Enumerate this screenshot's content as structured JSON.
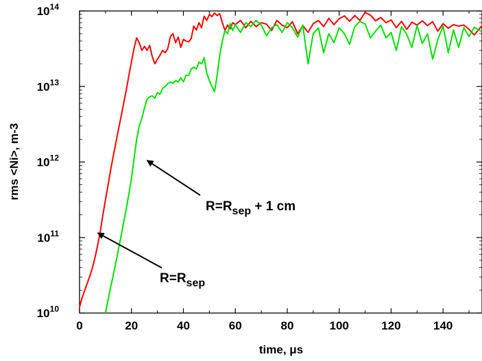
{
  "chart_data": {
    "type": "line",
    "xlabel": "time, μs",
    "ylabel": "rms <Ni>, m-3",
    "xlim": [
      0,
      155
    ],
    "ylim": [
      10000000000,
      100000000000000
    ],
    "yscale": "log",
    "xticks": [
      "0",
      "20",
      "40",
      "60",
      "80",
      "100",
      "120",
      "140"
    ],
    "yticks": [
      {
        "base": "10",
        "exp": "10"
      },
      {
        "base": "10",
        "exp": "11"
      },
      {
        "base": "10",
        "exp": "12"
      },
      {
        "base": "10",
        "exp": "13"
      },
      {
        "base": "10",
        "exp": "14"
      }
    ],
    "grid": false,
    "series": [
      {
        "label": "R=Rsep",
        "color": "#ff0000",
        "x": [
          0,
          1,
          2,
          3,
          4,
          5,
          6,
          7,
          8,
          9,
          10,
          11,
          12,
          13,
          14,
          15,
          16,
          17,
          18,
          19,
          20,
          21,
          22,
          23,
          24,
          25,
          26,
          27,
          28,
          29,
          30,
          31,
          32,
          33,
          34,
          35,
          36,
          37,
          38,
          39,
          40,
          41,
          42,
          43,
          44,
          45,
          46,
          47,
          48,
          49,
          50,
          51,
          52,
          53,
          54,
          55,
          56,
          57,
          58,
          59,
          60,
          62,
          64,
          66,
          68,
          70,
          72,
          74,
          76,
          78,
          80,
          82,
          84,
          86,
          88,
          90,
          92,
          94,
          96,
          98,
          100,
          102,
          104,
          106,
          108,
          110,
          112,
          114,
          116,
          118,
          120,
          122,
          124,
          126,
          128,
          130,
          132,
          134,
          136,
          138,
          140,
          142,
          144,
          146,
          148,
          150,
          152,
          155
        ],
        "y": [
          12000000000.0,
          16000000000.0,
          20000000000.0,
          25000000000.0,
          31000000000.0,
          40000000000.0,
          55000000000.0,
          80000000000.0,
          120000000000.0,
          200000000000.0,
          320000000000.0,
          500000000000.0,
          790000000000.0,
          1200000000000.0,
          1800000000000.0,
          2700000000000.0,
          4000000000000.0,
          6000000000000.0,
          9000000000000.0,
          14000000000000.0,
          21000000000000.0,
          32000000000000.0,
          44000000000000.0,
          38000000000000.0,
          30000000000000.0,
          34000000000000.0,
          30000000000000.0,
          35000000000000.0,
          25000000000000.0,
          20000000000000.0,
          23000000000000.0,
          26000000000000.0,
          30000000000000.0,
          28000000000000.0,
          32000000000000.0,
          46000000000000.0,
          50000000000000.0,
          38000000000000.0,
          45000000000000.0,
          33000000000000.0,
          42000000000000.0,
          40000000000000.0,
          39000000000000.0,
          43000000000000.0,
          63000000000000.0,
          56000000000000.0,
          70000000000000.0,
          60000000000000.0,
          85000000000000.0,
          75000000000000.0,
          90000000000000.0,
          84000000000000.0,
          94000000000000.0,
          87000000000000.0,
          92000000000000.0,
          70000000000000.0,
          55000000000000.0,
          65000000000000.0,
          58000000000000.0,
          70000000000000.0,
          66000000000000.0,
          75000000000000.0,
          60000000000000.0,
          73000000000000.0,
          62000000000000.0,
          70000000000000.0,
          67000000000000.0,
          55000000000000.0,
          75000000000000.0,
          65000000000000.0,
          60000000000000.0,
          72000000000000.0,
          50000000000000.0,
          64000000000000.0,
          52000000000000.0,
          68000000000000.0,
          75000000000000.0,
          62000000000000.0,
          80000000000000.0,
          66000000000000.0,
          79000000000000.0,
          86000000000000.0,
          73000000000000.0,
          87000000000000.0,
          75000000000000.0,
          96000000000000.0,
          88000000000000.0,
          74000000000000.0,
          82000000000000.0,
          70000000000000.0,
          76000000000000.0,
          60000000000000.0,
          73000000000000.0,
          57000000000000.0,
          71000000000000.0,
          65000000000000.0,
          74000000000000.0,
          64000000000000.0,
          72000000000000.0,
          54000000000000.0,
          68000000000000.0,
          59000000000000.0,
          66000000000000.0,
          63000000000000.0,
          65000000000000.0,
          57000000000000.0,
          48000000000000.0,
          64000000000000.0
        ]
      },
      {
        "label": "R=Rsep + 1 cm",
        "color": "#00e000",
        "x": [
          10,
          11,
          12,
          13,
          14,
          15,
          16,
          17,
          18,
          19,
          20,
          21,
          22,
          23,
          24,
          25,
          26,
          27,
          28,
          29,
          30,
          31,
          32,
          33,
          34,
          35,
          36,
          37,
          38,
          39,
          40,
          41,
          42,
          43,
          44,
          45,
          46,
          47,
          48,
          49,
          50,
          51,
          52,
          53,
          54,
          55,
          56,
          57,
          58,
          59,
          60,
          62,
          64,
          66,
          68,
          70,
          72,
          74,
          76,
          78,
          80,
          82,
          84,
          86,
          88,
          90,
          92,
          94,
          96,
          98,
          100,
          102,
          104,
          106,
          108,
          110,
          112,
          114,
          116,
          118,
          120,
          122,
          124,
          126,
          128,
          130,
          132,
          134,
          136,
          138,
          140,
          142,
          144,
          146,
          148,
          150,
          152,
          155
        ],
        "y": [
          10000000000.0,
          15000000000.0,
          22000000000.0,
          32000000000.0,
          47000000000.0,
          70000000000.0,
          105000000000.0,
          160000000000.0,
          240000000000.0,
          380000000000.0,
          600000000000.0,
          1100000000000.0,
          2000000000000.0,
          3000000000000.0,
          3800000000000.0,
          5200000000000.0,
          6800000000000.0,
          7300000000000.0,
          7500000000000.0,
          7000000000000.0,
          8300000000000.0,
          7900000000000.0,
          9500000000000.0,
          10000000000000.0,
          11000000000000.0,
          11500000000000.0,
          11000000000000.0,
          12000000000000.0,
          11500000000000.0,
          13000000000000.0,
          11500000000000.0,
          14000000000000.0,
          14000000000000.0,
          17000000000000.0,
          18000000000000.0,
          17000000000000.0,
          21000000000000.0,
          20000000000000.0,
          24000000000000.0,
          15000000000000.0,
          12000000000000.0,
          10000000000000.0,
          8500000000000.0,
          14000000000000.0,
          26000000000000.0,
          40000000000000.0,
          55000000000000.0,
          50000000000000.0,
          68000000000000.0,
          55000000000000.0,
          66000000000000.0,
          52000000000000.0,
          70000000000000.0,
          62000000000000.0,
          75000000000000.0,
          65000000000000.0,
          47000000000000.0,
          60000000000000.0,
          66000000000000.0,
          52000000000000.0,
          70000000000000.0,
          60000000000000.0,
          45000000000000.0,
          65000000000000.0,
          20000000000000.0,
          50000000000000.0,
          60000000000000.0,
          28000000000000.0,
          50000000000000.0,
          38000000000000.0,
          60000000000000.0,
          50000000000000.0,
          36000000000000.0,
          62000000000000.0,
          73000000000000.0,
          67000000000000.0,
          44000000000000.0,
          54000000000000.0,
          65000000000000.0,
          44000000000000.0,
          52000000000000.0,
          30000000000000.0,
          62000000000000.0,
          49000000000000.0,
          33000000000000.0,
          64000000000000.0,
          37000000000000.0,
          50000000000000.0,
          23000000000000.0,
          42000000000000.0,
          63000000000000.0,
          28000000000000.0,
          56000000000000.0,
          33000000000000.0,
          60000000000000.0,
          46000000000000.0,
          61000000000000.0,
          53000000000000.0
        ]
      }
    ],
    "annotations": [
      {
        "text_main": "R=R",
        "text_sub": "sep",
        "text_tail": "",
        "target_x": 7,
        "target_y": 115000000000.0
      },
      {
        "text_main": "R=R",
        "text_sub": "sep",
        "text_tail": " + 1 cm",
        "target_x": 26,
        "target_y": 1050000000000.0
      }
    ]
  }
}
